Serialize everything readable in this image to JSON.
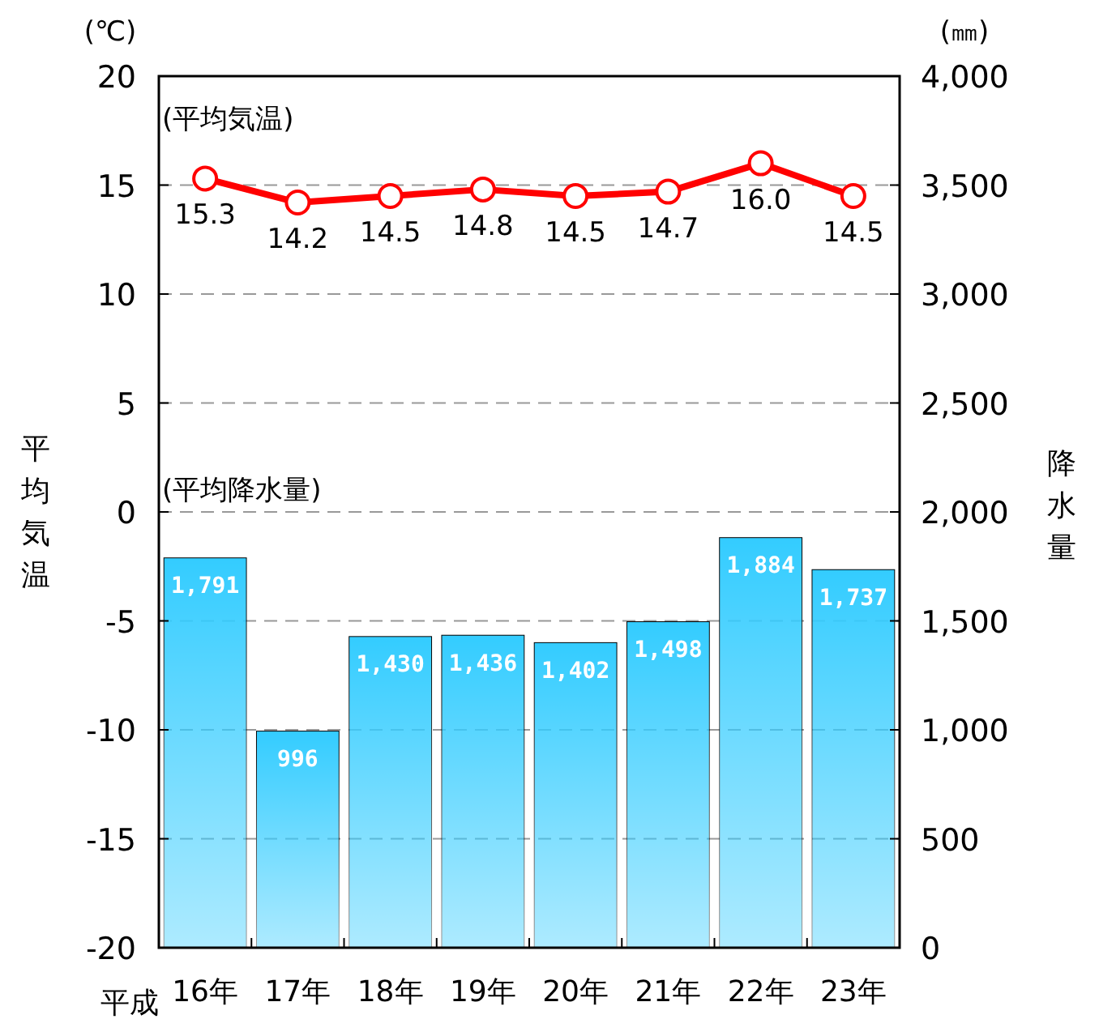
{
  "chart_data": {
    "type": "bar",
    "categories": [
      "16年",
      "17年",
      "18年",
      "19年",
      "20年",
      "21年",
      "22年",
      "23年"
    ],
    "ylabel": "平均気温",
    "y2label": "降水量",
    "annotations": [
      "(℃)",
      "(㎜)",
      "平成"
    ],
    "ylim": [
      -20,
      20
    ],
    "yticks": [
      -20,
      -15,
      -10,
      -5,
      0,
      5,
      10,
      15,
      20
    ],
    "y2lim": [
      0,
      4000
    ],
    "y2ticks": [
      {
        "value": 0,
        "label": "0"
      },
      {
        "value": 500,
        "label": "500"
      },
      {
        "value": 1000,
        "label": "1,000"
      },
      {
        "value": 1500,
        "label": "1,500"
      },
      {
        "value": 2000,
        "label": "2,000"
      },
      {
        "value": 2500,
        "label": "2,500"
      },
      {
        "value": 3000,
        "label": "3,000"
      },
      {
        "value": 3500,
        "label": "3,500"
      },
      {
        "value": 4000,
        "label": "4,000"
      }
    ],
    "grid": "y",
    "legend": false,
    "series": [
      {
        "name": "(平均気温)",
        "type": "line",
        "color": "#ff0000",
        "marker": "circle",
        "line_style": "solid",
        "values": [
          15.3,
          14.2,
          14.5,
          14.8,
          14.5,
          14.7,
          16.0,
          14.5
        ],
        "value_labels": [
          "15.3",
          "14.2",
          "14.5",
          "14.8",
          "14.5",
          "14.7",
          "16.0",
          "14.5"
        ]
      },
      {
        "name": "(平均降水量)",
        "axis": "y2",
        "color": "#33ccff",
        "values": [
          1791,
          996,
          1430,
          1436,
          1402,
          1498,
          1884,
          1737
        ],
        "value_labels": [
          "1,791",
          "996",
          "1,430",
          "1,436",
          "1,402",
          "1,498",
          "1,884",
          "1,737"
        ]
      }
    ]
  }
}
